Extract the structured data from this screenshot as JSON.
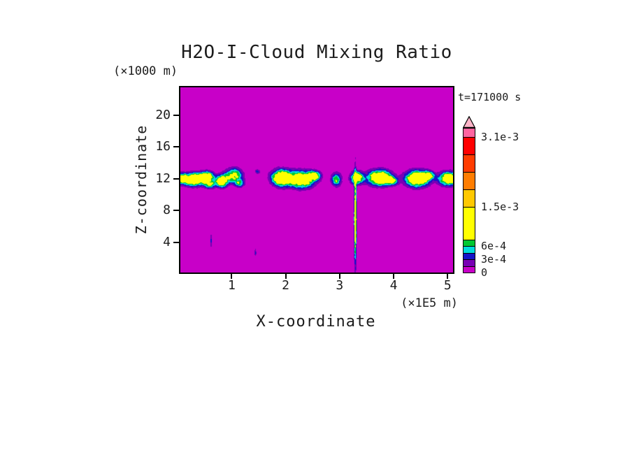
{
  "chart_data": {
    "type": "heatmap",
    "title": "H2O-I-Cloud Mixing Ratio",
    "xlabel": "X-coordinate",
    "x_unit_label": "(×1E5 m)",
    "ylabel": "Z-coordinate",
    "y_unit_label": "(×1000 m)",
    "time_annotation": "t=171000 s",
    "x_range_1e5_m": [
      0.05,
      5.1
    ],
    "z_range_km": [
      0.17,
      23.52
    ],
    "x_ticks": [
      1,
      2,
      3,
      4,
      5
    ],
    "z_ticks": [
      20,
      16,
      12,
      8,
      4
    ],
    "grid": false,
    "background_color": "#C800C8",
    "frame_color": "#000000",
    "contour_level_bounds": [
      0.00015,
      0.0003,
      0.00045,
      0.0006,
      0.00075
    ],
    "contour_level_colors": [
      "#7800B4",
      "#1414C8",
      "#00DCDC",
      "#00C832",
      "#FFFF00"
    ],
    "cloud_bumps": [
      {
        "x": 0.05,
        "z": 12.0,
        "sx": 0.12,
        "sz": 0.6,
        "amp": 0.0009
      },
      {
        "x": 0.3,
        "z": 11.9,
        "sx": 0.2,
        "sz": 0.75,
        "amp": 0.00135
      },
      {
        "x": 0.54,
        "z": 12.3,
        "sx": 0.13,
        "sz": 0.6,
        "amp": 0.001
      },
      {
        "x": 0.6,
        "z": 11.3,
        "sx": 0.1,
        "sz": 0.5,
        "amp": 0.0008
      },
      {
        "x": 0.82,
        "z": 11.7,
        "sx": 0.1,
        "sz": 0.7,
        "amp": 0.0013
      },
      {
        "x": 1.04,
        "z": 12.4,
        "sx": 0.15,
        "sz": 0.85,
        "amp": 0.00095
      },
      {
        "x": 1.15,
        "z": 11.4,
        "sx": 0.08,
        "sz": 0.45,
        "amp": 0.00065
      },
      {
        "x": 1.48,
        "z": 12.9,
        "sx": 0.05,
        "sz": 0.28,
        "amp": 0.0004
      },
      {
        "x": 1.93,
        "z": 12.1,
        "sx": 0.18,
        "sz": 0.95,
        "amp": 0.0014
      },
      {
        "x": 2.3,
        "z": 11.9,
        "sx": 0.22,
        "sz": 1.0,
        "amp": 0.00125
      },
      {
        "x": 2.54,
        "z": 12.4,
        "sx": 0.11,
        "sz": 0.55,
        "amp": 0.00085
      },
      {
        "x": 2.94,
        "z": 11.9,
        "sx": 0.09,
        "sz": 0.8,
        "amp": 0.00075
      },
      {
        "x": 3.32,
        "z": 12.1,
        "sx": 0.11,
        "sz": 0.75,
        "amp": 0.00115
      },
      {
        "x": 3.29,
        "z": 7.0,
        "sx": 0.022,
        "sz": 5.2,
        "amp": 0.00125
      },
      {
        "x": 3.74,
        "z": 12.1,
        "sx": 0.21,
        "sz": 0.9,
        "amp": 0.00142
      },
      {
        "x": 3.97,
        "z": 11.7,
        "sx": 0.1,
        "sz": 0.5,
        "amp": 0.0007
      },
      {
        "x": 4.44,
        "z": 12.0,
        "sx": 0.21,
        "sz": 0.95,
        "amp": 0.00138
      },
      {
        "x": 4.64,
        "z": 12.4,
        "sx": 0.1,
        "sz": 0.5,
        "amp": 0.0008
      },
      {
        "x": 5.02,
        "z": 12.0,
        "sx": 0.17,
        "sz": 0.8,
        "amp": 0.0013
      },
      {
        "x": 0.62,
        "z": 4.2,
        "sx": 0.018,
        "sz": 0.9,
        "amp": 0.00035
      },
      {
        "x": 1.44,
        "z": 2.7,
        "sx": 0.018,
        "sz": 0.5,
        "amp": 0.00035
      }
    ],
    "colorbar": {
      "tick_labels": [
        {
          "value": 0,
          "label": "0"
        },
        {
          "value": 0.0003,
          "label": "3e-4"
        },
        {
          "value": 0.0006,
          "label": "6e-4"
        },
        {
          "value": 0.0015,
          "label": "1.5e-3"
        },
        {
          "value": 0.0031,
          "label": "3.1e-3"
        }
      ],
      "segments": [
        {
          "v0": 0,
          "v1": 0.00015,
          "color": "#C800C8"
        },
        {
          "v0": 0.00015,
          "v1": 0.0003,
          "color": "#7800B4"
        },
        {
          "v0": 0.0003,
          "v1": 0.00045,
          "color": "#1414C8"
        },
        {
          "v0": 0.00045,
          "v1": 0.0006,
          "color": "#00DCDC"
        },
        {
          "v0": 0.0006,
          "v1": 0.00075,
          "color": "#00C832"
        },
        {
          "v0": 0.00075,
          "v1": 0.0015,
          "color": "#FFFF00"
        },
        {
          "v0": 0.0015,
          "v1": 0.0019,
          "color": "#FFC800"
        },
        {
          "v0": 0.0019,
          "v1": 0.0023,
          "color": "#FF7D00"
        },
        {
          "v0": 0.0023,
          "v1": 0.0027,
          "color": "#FF3C00"
        },
        {
          "v0": 0.0027,
          "v1": 0.0031,
          "color": "#FF0000"
        },
        {
          "v0": 0.0031,
          "v1": 0.0033,
          "color": "#FF64A0"
        }
      ],
      "overflow_arrow_color": "#FFB4C8"
    }
  }
}
